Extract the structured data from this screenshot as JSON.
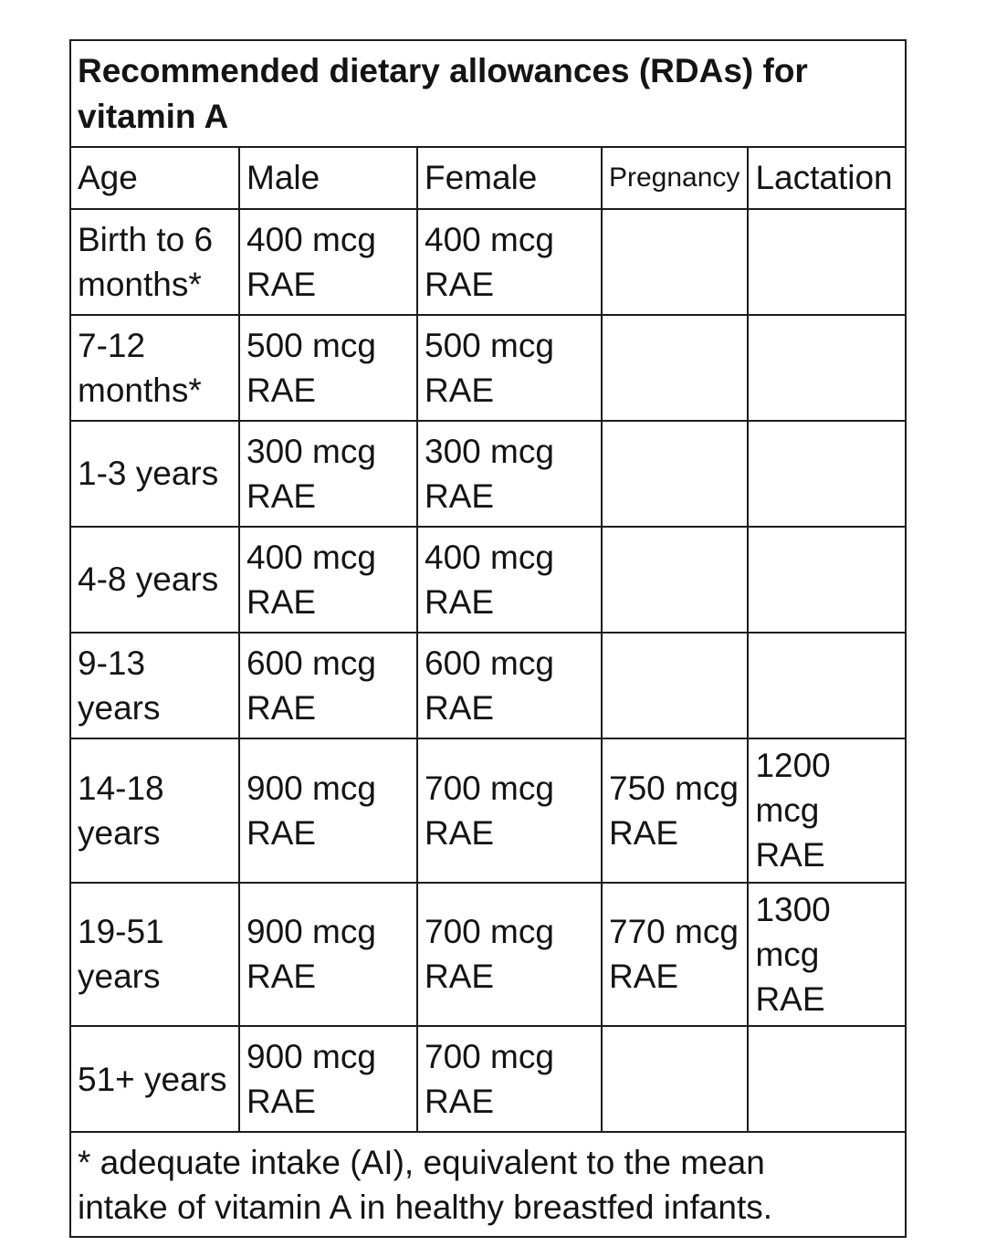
{
  "colors": {
    "background": "#ffffff",
    "border": "#1c1c1c",
    "text": "#141414"
  },
  "table": {
    "title": "Recommended dietary allowances (RDAs) for\nvitamin A",
    "columns": [
      "Age",
      "Male",
      "Female",
      "Pregnancy",
      "Lactation"
    ],
    "rows": [
      {
        "cells": [
          "Birth to 6\nmonths*",
          "400 mcg\nRAE",
          "400 mcg\nRAE",
          "",
          ""
        ]
      },
      {
        "cells": [
          "7-12\nmonths*",
          "500 mcg\nRAE",
          "500 mcg\nRAE",
          "",
          ""
        ]
      },
      {
        "cells": [
          "1-3 years",
          "300 mcg\nRAE",
          "300 mcg\nRAE",
          "",
          ""
        ]
      },
      {
        "cells": [
          "4-8 years",
          "400 mcg\nRAE",
          "400 mcg\nRAE",
          "",
          ""
        ]
      },
      {
        "cells": [
          "9-13\nyears",
          "600 mcg\nRAE",
          "600 mcg\nRAE",
          "",
          ""
        ]
      },
      {
        "cells": [
          "14-18\nyears",
          "900 mcg\nRAE",
          "700 mcg\nRAE",
          "750 mcg\nRAE",
          "1200\nmcg RAE"
        ]
      },
      {
        "cells": [
          "19-51\nyears",
          "900 mcg\nRAE",
          "700 mcg\nRAE",
          "770 mcg\nRAE",
          "1300\nmcg RAE"
        ]
      },
      {
        "cells": [
          "51+ years",
          "900 mcg\nRAE",
          "700 mcg\nRAE",
          "",
          ""
        ]
      }
    ],
    "footnote": "* adequate intake (AI), equivalent to the mean\nintake of vitamin A in healthy breastfed infants."
  }
}
